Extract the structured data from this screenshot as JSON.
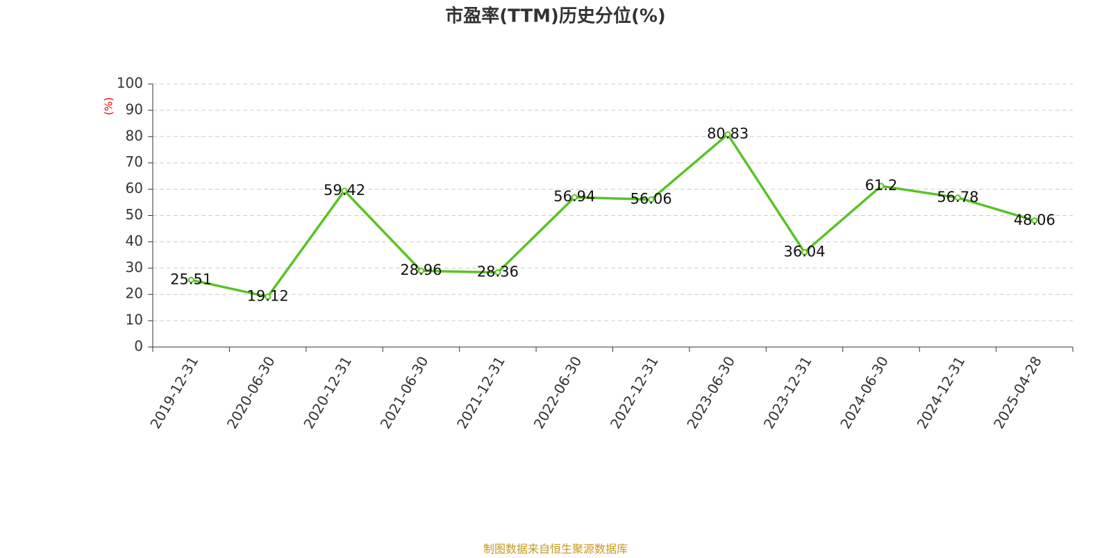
{
  "chart_data": {
    "type": "line",
    "title": "市盈率(TTM)历史分位(%)",
    "y_label": "(%)",
    "source": "制图数据来自恒生聚源数据库",
    "categories": [
      "2019-12-31",
      "2020-06-30",
      "2020-12-31",
      "2021-06-30",
      "2021-12-31",
      "2022-06-30",
      "2022-12-31",
      "2023-06-30",
      "2023-12-31",
      "2024-06-30",
      "2024-12-31",
      "2025-04-28"
    ],
    "series": [
      {
        "name": "市盈率(TTM)历史分位",
        "color": "#58c323",
        "values": [
          25.51,
          19.12,
          59.42,
          28.96,
          28.36,
          56.94,
          56.06,
          80.83,
          36.04,
          61.2,
          56.78,
          48.06
        ]
      }
    ],
    "ylim": [
      0,
      100
    ],
    "yticks": [
      0,
      10,
      20,
      30,
      40,
      50,
      60,
      70,
      80,
      90,
      100
    ],
    "grid": true
  }
}
